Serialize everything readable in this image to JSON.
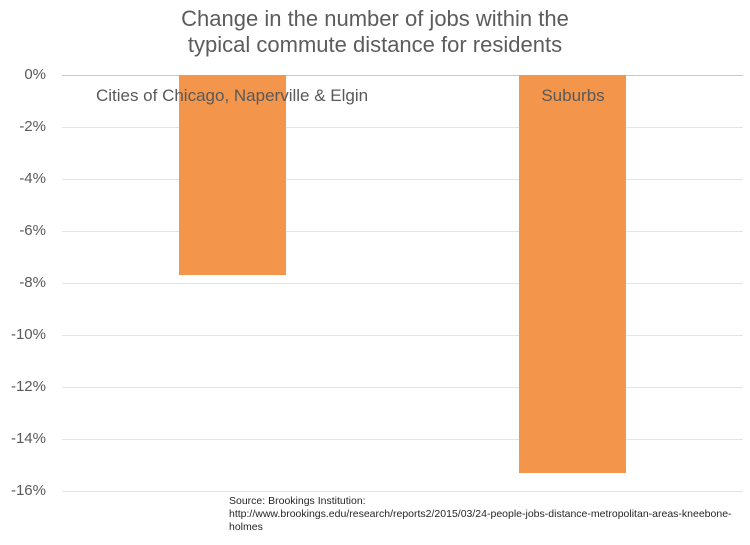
{
  "header": {
    "title_lines": [
      "Change in the number of jobs within the",
      "typical commute distance for residents"
    ]
  },
  "source": {
    "line1": "Source: Brookings Institution:",
    "line2": "http://www.brookings.edu/research/reports2/2015/03/24-people-jobs-distance-metropolitan-areas-kneebone-holmes"
  },
  "chart_data": {
    "type": "bar",
    "title": "Change in the number of jobs within the typical commute distance for residents",
    "categories": [
      "Cities of Chicago, Naperville & Elgin",
      "Suburbs"
    ],
    "values": [
      -7.7,
      -15.3
    ],
    "value_unit": "%",
    "xlabel": "",
    "ylabel": "",
    "ylim": [
      -16,
      0
    ],
    "yticks": [
      0,
      -2,
      -4,
      -6,
      -8,
      -10,
      -12,
      -14,
      -16
    ],
    "ytick_labels": [
      "0%",
      "-2%",
      "-4%",
      "-6%",
      "-8%",
      "-10%",
      "-12%",
      "-14%",
      "-16%"
    ],
    "grid": true,
    "legend_position": "none",
    "bar_color": "#f3954b",
    "gridline_color": "#e4e4e4",
    "zero_line_color": "#c7c7c7",
    "label_color": "#595959"
  }
}
